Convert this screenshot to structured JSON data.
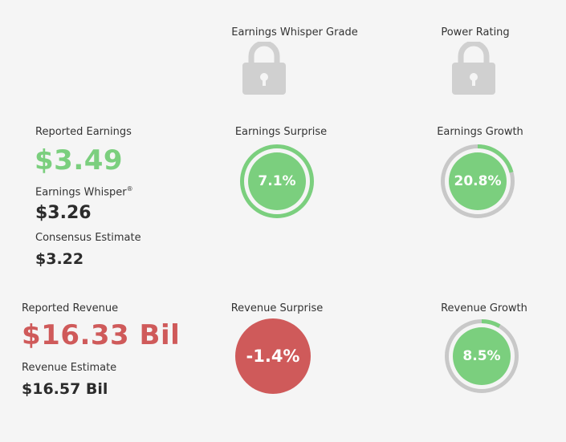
{
  "grades": {
    "earnings_whisper_grade_label": "Earnings Whisper Grade",
    "power_rating_label": "Power Rating",
    "lock_icon": "lock-icon"
  },
  "earnings": {
    "reported_label": "Reported Earnings",
    "reported_value": "$3.49",
    "whisper_label": "Earnings Whisper",
    "whisper_mark": "®",
    "whisper_value": "$3.26",
    "consensus_label": "Consensus Estimate",
    "consensus_value": "$3.22",
    "surprise_label": "Earnings Surprise",
    "surprise_value": "7.1%",
    "surprise_fraction": 0.071,
    "growth_label": "Earnings Growth",
    "growth_value": "20.8%",
    "growth_fraction": 0.208
  },
  "revenue": {
    "reported_label": "Reported Revenue",
    "reported_value": "$16.33 Bil",
    "estimate_label": "Revenue Estimate",
    "estimate_value": "$16.57 Bil",
    "surprise_label": "Revenue Surprise",
    "surprise_value": "-1.4%",
    "growth_label": "Revenue Growth",
    "growth_value": "8.5%",
    "growth_fraction": 0.085
  },
  "colors": {
    "positive": "#7bcf7e",
    "negative": "#cf5a5a",
    "ring_track": "#c8c8c8",
    "lock": "#d0d0d0"
  }
}
